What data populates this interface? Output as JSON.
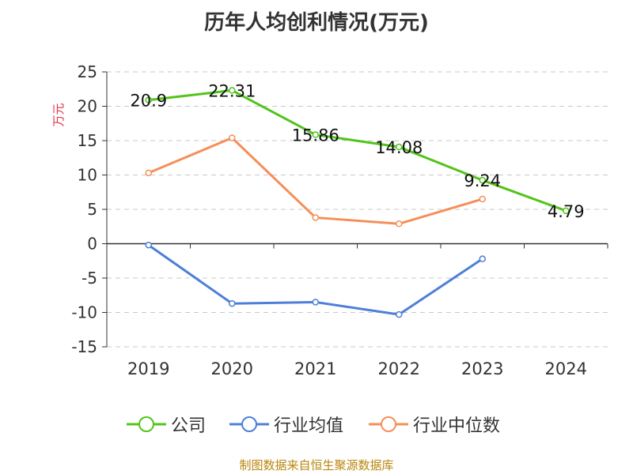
{
  "chart_data": {
    "type": "line",
    "title": "历年人均创利情况(万元)",
    "ylabel": "万元",
    "xlabel": "",
    "categories": [
      "2019",
      "2020",
      "2021",
      "2022",
      "2023",
      "2024"
    ],
    "ylim": [
      -15,
      25
    ],
    "yticks": [
      -15,
      -10,
      -5,
      0,
      5,
      10,
      15,
      20,
      25
    ],
    "grid": true,
    "legend_position": "bottom",
    "series": [
      {
        "name": "公司",
        "color": "#52c41a",
        "values": [
          20.9,
          22.31,
          15.86,
          14.08,
          9.24,
          4.79
        ],
        "show_labels": true
      },
      {
        "name": "行业均值",
        "color": "#4e7fd8",
        "values": [
          -0.2,
          -8.7,
          -8.5,
          -10.3,
          -2.2,
          null
        ],
        "show_labels": false
      },
      {
        "name": "行业中位数",
        "color": "#f58f58",
        "values": [
          10.3,
          15.4,
          3.8,
          2.9,
          6.5,
          null
        ],
        "show_labels": false
      }
    ]
  },
  "footer": "制图数据来自恒生聚源数据库"
}
